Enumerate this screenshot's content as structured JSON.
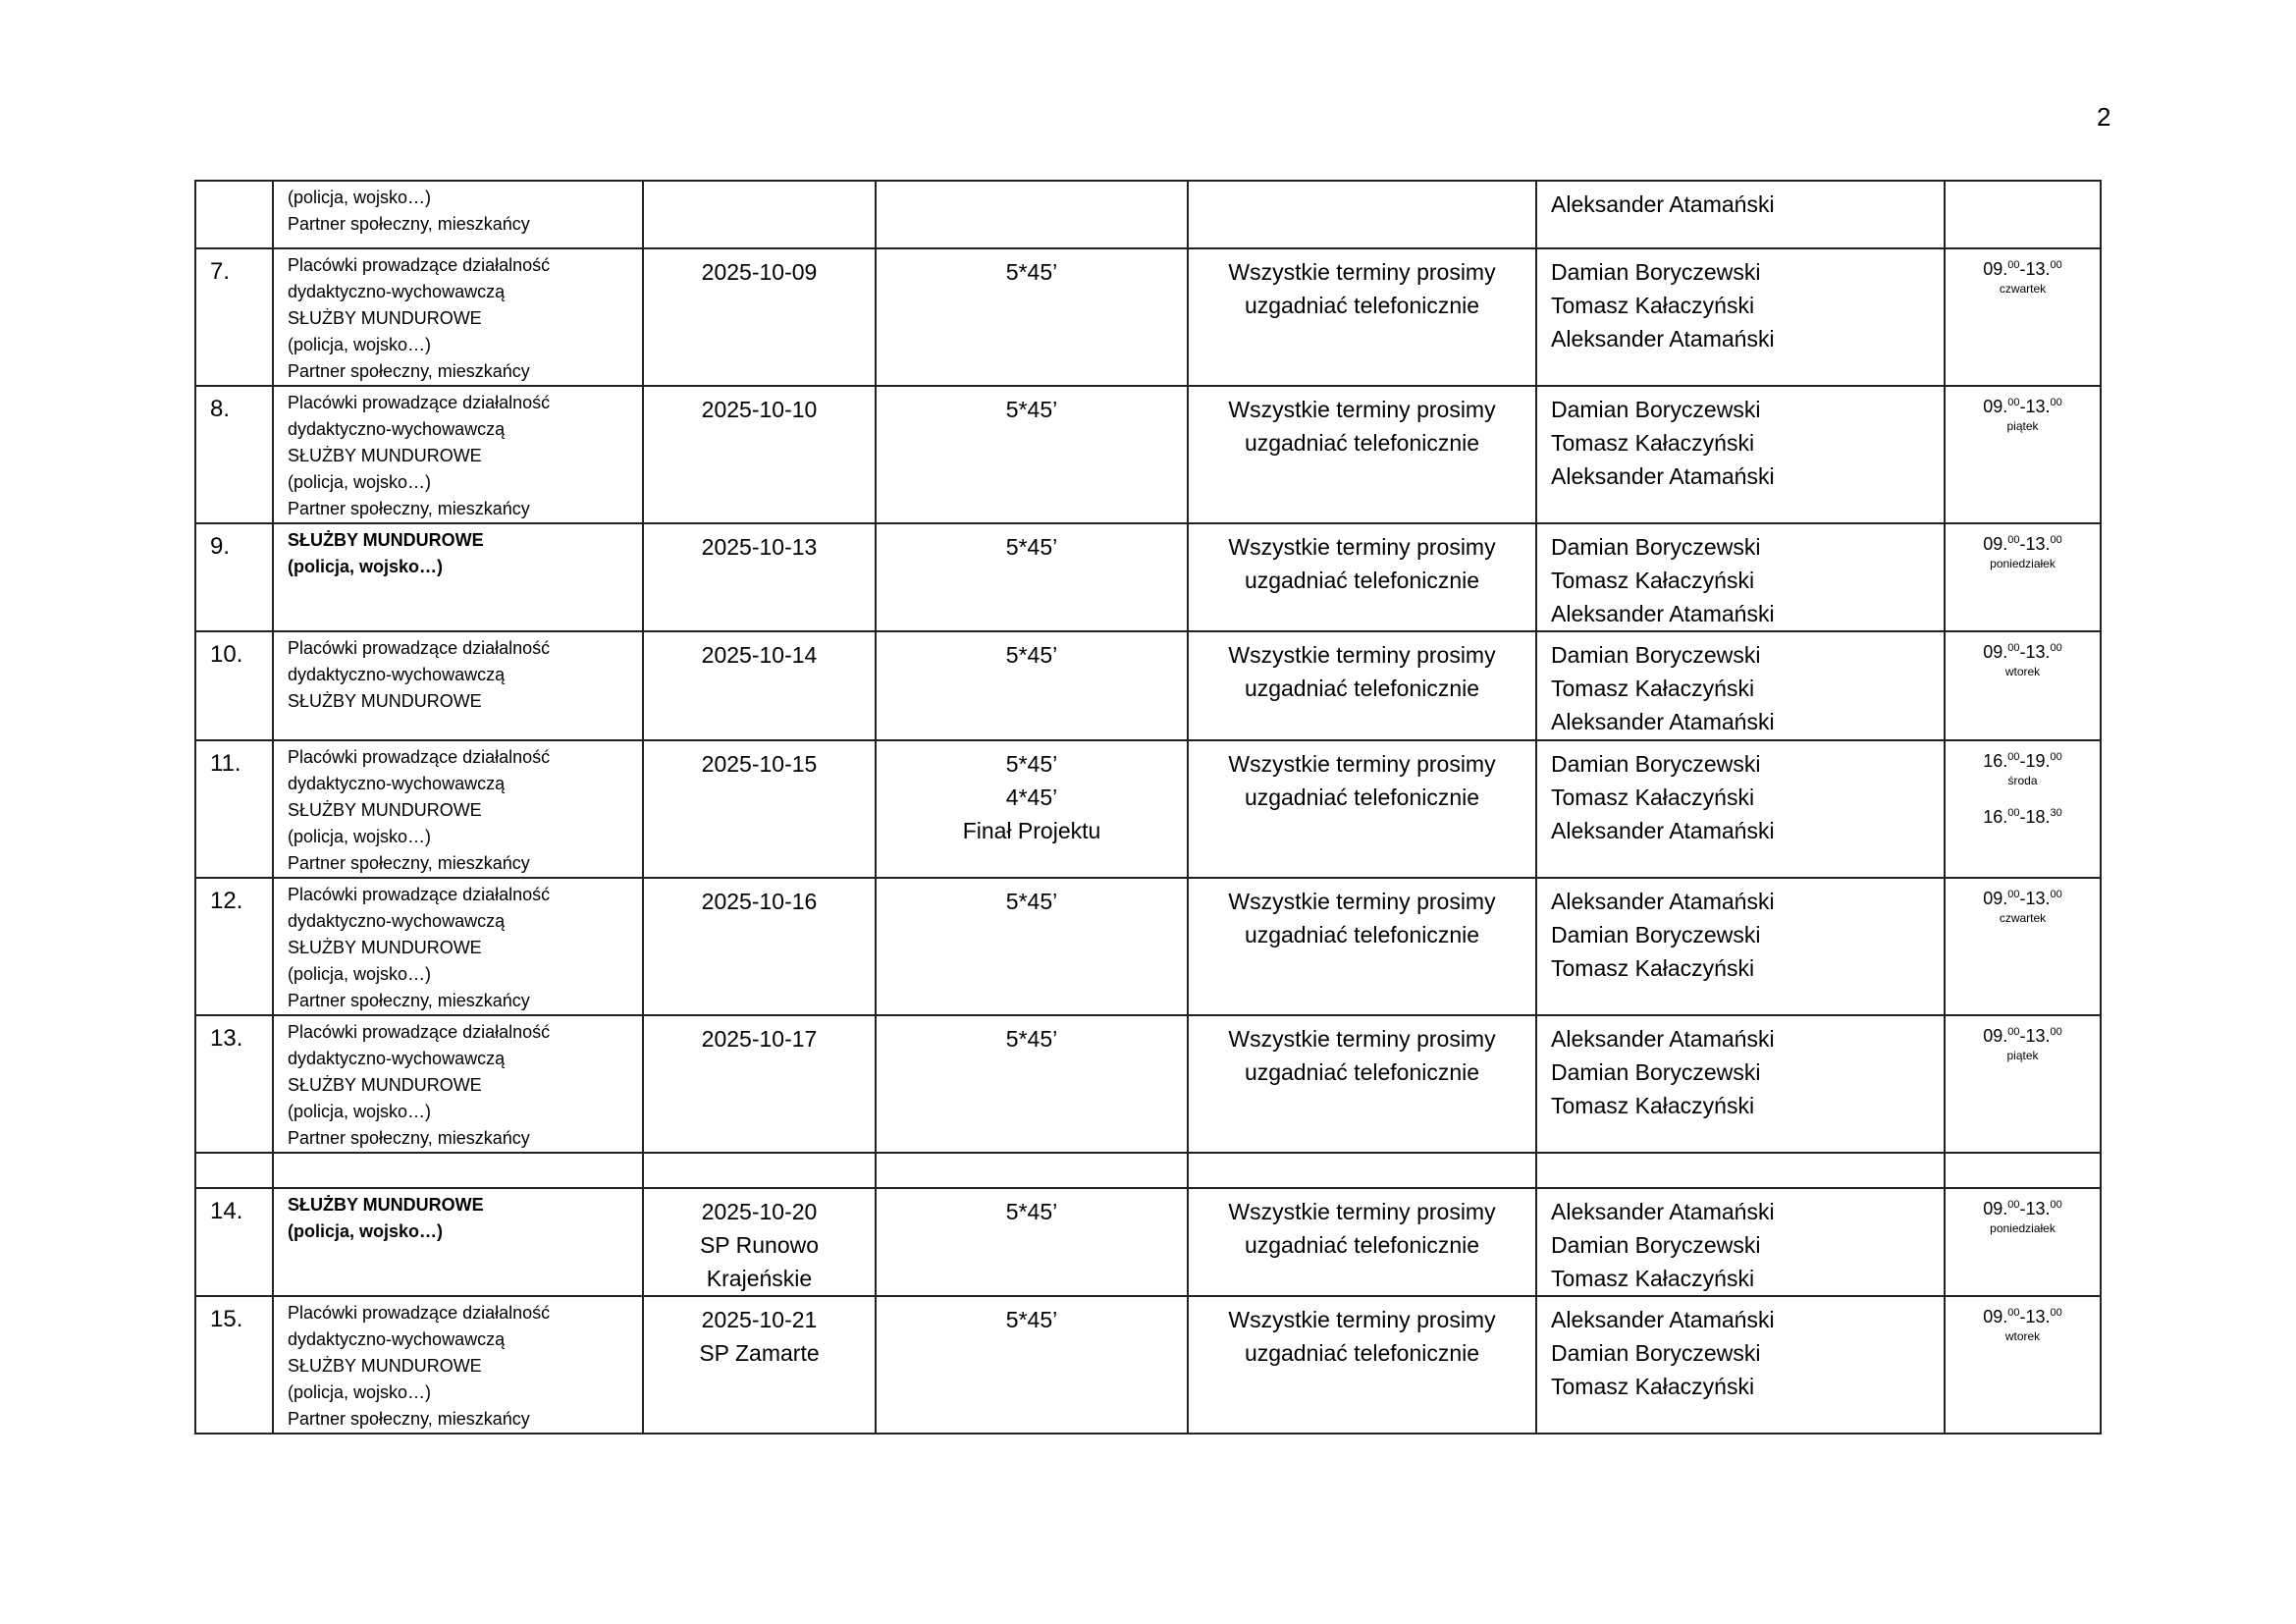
{
  "page_number": "2",
  "rows": [
    {
      "no": "",
      "audience": [
        {
          "t": "(policja, wojsko…)",
          "b": false
        },
        {
          "t": "Partner społeczny, mieszkańcy",
          "b": false
        }
      ],
      "dates": [],
      "hours": [],
      "info": [],
      "people": [
        "Aleksander Atamański"
      ],
      "times": []
    },
    {
      "no": "7.",
      "audience": [
        {
          "t": "Placówki prowadzące działalność",
          "b": false
        },
        {
          "t": "dydaktyczno-wychowawczą",
          "b": false
        },
        {
          "t": "SŁUŻBY MUNDUROWE",
          "b": false
        },
        {
          "t": "(policja, wojsko…)",
          "b": false
        },
        {
          "t": "Partner społeczny, mieszkańcy",
          "b": false
        }
      ],
      "dates": [
        "2025-10-09"
      ],
      "hours": [
        "5*45’"
      ],
      "info": [
        "Wszystkie terminy prosimy",
        "uzgadniać telefonicznie"
      ],
      "people": [
        "Damian Boryczewski",
        "Tomasz Kałaczyński",
        "Aleksander Atamański"
      ],
      "times": [
        {
          "fh": "09.",
          "fm": "00",
          "th": "13.",
          "tm": "00",
          "day": "czwartek"
        }
      ]
    },
    {
      "no": "8.",
      "audience": [
        {
          "t": "Placówki prowadzące działalność",
          "b": false
        },
        {
          "t": "dydaktyczno-wychowawczą",
          "b": false
        },
        {
          "t": "SŁUŻBY MUNDUROWE",
          "b": false
        },
        {
          "t": "(policja, wojsko…)",
          "b": false
        },
        {
          "t": "Partner społeczny, mieszkańcy",
          "b": false
        }
      ],
      "dates": [
        "2025-10-10"
      ],
      "hours": [
        "5*45’"
      ],
      "info": [
        "Wszystkie terminy prosimy",
        "uzgadniać telefonicznie"
      ],
      "people": [
        "Damian Boryczewski",
        "Tomasz Kałaczyński",
        "Aleksander Atamański"
      ],
      "times": [
        {
          "fh": "09.",
          "fm": "00",
          "th": "13.",
          "tm": "00",
          "day": "piątek"
        }
      ]
    },
    {
      "no": "9.",
      "audience": [
        {
          "t": "SŁUŻBY MUNDUROWE",
          "b": true
        },
        {
          "t": "(policja, wojsko…)",
          "b": true
        }
      ],
      "dates": [
        "2025-10-13"
      ],
      "hours": [
        "5*45’"
      ],
      "info": [
        "Wszystkie terminy prosimy",
        "uzgadniać telefonicznie"
      ],
      "people": [
        "Damian Boryczewski",
        "Tomasz Kałaczyński",
        "Aleksander Atamański"
      ],
      "times": [
        {
          "fh": "09.",
          "fm": "00",
          "th": "13.",
          "tm": "00",
          "day": "poniedziałek"
        }
      ]
    },
    {
      "no": "10.",
      "audience": [
        {
          "t": "Placówki prowadzące działalność",
          "b": false
        },
        {
          "t": "dydaktyczno-wychowawczą",
          "b": false
        },
        {
          "t": "SŁUŻBY MUNDUROWE",
          "b": false
        }
      ],
      "dates": [
        "2025-10-14"
      ],
      "hours": [
        "5*45’"
      ],
      "info": [
        "Wszystkie terminy prosimy",
        "uzgadniać telefonicznie"
      ],
      "people": [
        "Damian Boryczewski",
        "Tomasz Kałaczyński",
        "Aleksander Atamański"
      ],
      "times": [
        {
          "fh": "09.",
          "fm": "00",
          "th": "13.",
          "tm": "00",
          "day": "wtorek"
        }
      ]
    },
    {
      "no": "11.",
      "audience": [
        {
          "t": "Placówki prowadzące działalność",
          "b": false
        },
        {
          "t": "dydaktyczno-wychowawczą",
          "b": false
        },
        {
          "t": "SŁUŻBY MUNDUROWE",
          "b": false
        },
        {
          "t": "(policja, wojsko…)",
          "b": false
        },
        {
          "t": "Partner społeczny, mieszkańcy",
          "b": false
        }
      ],
      "dates": [
        "2025-10-15"
      ],
      "hours": [
        "5*45’",
        "4*45’",
        "Finał Projektu"
      ],
      "info": [
        "Wszystkie terminy prosimy",
        "uzgadniać telefonicznie"
      ],
      "people": [
        "Damian Boryczewski",
        "Tomasz Kałaczyński",
        "Aleksander Atamański"
      ],
      "times": [
        {
          "fh": "16.",
          "fm": "00",
          "th": "19.",
          "tm": "00",
          "day": "środa"
        },
        {
          "fh": "16.",
          "fm": "00",
          "th": "18.",
          "tm": "30",
          "day": ""
        }
      ]
    },
    {
      "no": "12.",
      "audience": [
        {
          "t": "Placówki prowadzące działalność",
          "b": false
        },
        {
          "t": "dydaktyczno-wychowawczą",
          "b": false
        },
        {
          "t": "SŁUŻBY MUNDUROWE",
          "b": false
        },
        {
          "t": "(policja, wojsko…)",
          "b": false
        },
        {
          "t": "Partner społeczny, mieszkańcy",
          "b": false
        }
      ],
      "dates": [
        "2025-10-16"
      ],
      "hours": [
        "5*45’"
      ],
      "info": [
        "Wszystkie terminy prosimy",
        "uzgadniać telefonicznie"
      ],
      "people": [
        "Aleksander Atamański",
        "Damian Boryczewski",
        "Tomasz Kałaczyński"
      ],
      "times": [
        {
          "fh": "09.",
          "fm": "00",
          "th": "13.",
          "tm": "00",
          "day": "czwartek"
        }
      ]
    },
    {
      "no": "13.",
      "audience": [
        {
          "t": "Placówki prowadzące działalność",
          "b": false
        },
        {
          "t": "dydaktyczno-wychowawczą",
          "b": false
        },
        {
          "t": "SŁUŻBY MUNDUROWE",
          "b": false
        },
        {
          "t": "(policja, wojsko…)",
          "b": false
        },
        {
          "t": "Partner społeczny, mieszkańcy",
          "b": false
        }
      ],
      "dates": [
        "2025-10-17"
      ],
      "hours": [
        "5*45’"
      ],
      "info": [
        "Wszystkie terminy prosimy",
        "uzgadniać telefonicznie"
      ],
      "people": [
        "Aleksander Atamański",
        "Damian Boryczewski",
        "Tomasz Kałaczyński"
      ],
      "times": [
        {
          "fh": "09.",
          "fm": "00",
          "th": "13.",
          "tm": "00",
          "day": "piątek"
        }
      ]
    },
    {
      "no": "",
      "audience": [],
      "dates": [],
      "hours": [],
      "info": [],
      "people": [],
      "times": []
    },
    {
      "no": "14.",
      "audience": [
        {
          "t": "SŁUŻBY MUNDUROWE",
          "b": true
        },
        {
          "t": "(policja, wojsko…)",
          "b": true
        }
      ],
      "dates": [
        "2025-10-20",
        "SP Runowo",
        "Krajeńskie"
      ],
      "hours": [
        "5*45’"
      ],
      "info": [
        "Wszystkie terminy prosimy",
        "uzgadniać telefonicznie"
      ],
      "people": [
        "Aleksander Atamański",
        "Damian Boryczewski",
        "Tomasz Kałaczyński"
      ],
      "times": [
        {
          "fh": "09.",
          "fm": "00",
          "th": "13.",
          "tm": "00",
          "day": "poniedziałek"
        }
      ]
    },
    {
      "no": "15.",
      "audience": [
        {
          "t": "Placówki prowadzące działalność",
          "b": false
        },
        {
          "t": "dydaktyczno-wychowawczą",
          "b": false
        },
        {
          "t": "SŁUŻBY MUNDUROWE",
          "b": false
        },
        {
          "t": "(policja, wojsko…)",
          "b": false
        },
        {
          "t": "Partner społeczny, mieszkańcy",
          "b": false
        }
      ],
      "dates": [
        "2025-10-21",
        "SP Zamarte"
      ],
      "hours": [
        "5*45’"
      ],
      "info": [
        "Wszystkie terminy prosimy",
        "uzgadniać telefonicznie"
      ],
      "people": [
        "Aleksander Atamański",
        "Damian Boryczewski",
        "Tomasz Kałaczyński"
      ],
      "times": [
        {
          "fh": "09.",
          "fm": "00",
          "th": "13.",
          "tm": "00",
          "day": "wtorek"
        }
      ]
    }
  ]
}
